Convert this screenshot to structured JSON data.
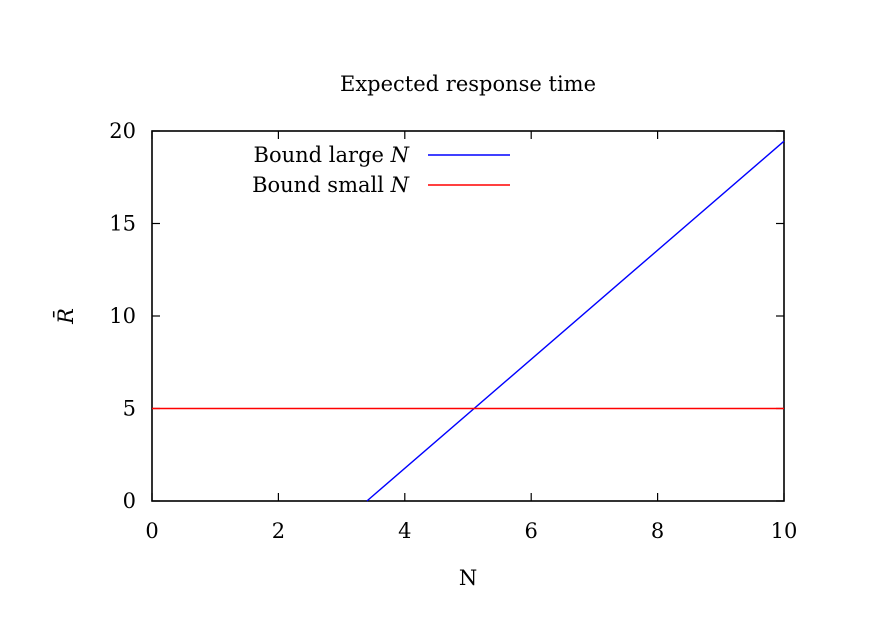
{
  "chart_data": {
    "type": "line",
    "title": "Expected response time",
    "xlabel": "N",
    "ylabel": "R̄",
    "xlim": [
      0,
      10
    ],
    "ylim": [
      0,
      20
    ],
    "x_ticks": [
      0,
      2,
      4,
      6,
      8,
      10
    ],
    "y_ticks": [
      0,
      5,
      10,
      15,
      20
    ],
    "x_tick_labels": [
      "0",
      "2",
      "4",
      "6",
      "8",
      "10"
    ],
    "y_tick_labels": [
      "0",
      "5",
      "10",
      "15",
      "20"
    ],
    "grid": false,
    "legend_position": "top-left",
    "series": [
      {
        "name": "Bound large N",
        "label_text": "Bound large ",
        "label_var": "N",
        "color": "#0000ff",
        "x": [
          3.4,
          10
        ],
        "y": [
          0,
          19.45
        ]
      },
      {
        "name": "Bound small N",
        "label_text": "Bound small ",
        "label_var": "N",
        "color": "#ff0000",
        "x": [
          0,
          10
        ],
        "y": [
          5,
          5
        ]
      }
    ]
  }
}
